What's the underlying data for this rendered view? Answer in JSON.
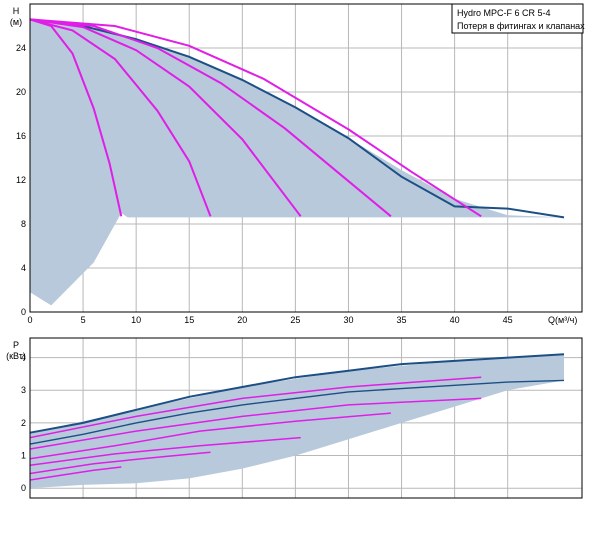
{
  "legend": {
    "lines": [
      "Hydro  MPC-F 6  CR 5-4",
      "Потеря в фитингах и клапанах"
    ]
  },
  "chart_data": [
    {
      "type": "line",
      "id": "head-curve",
      "ylabel_lines": [
        "H",
        "(м)"
      ],
      "xlabel": "Q(м³/ч)",
      "xlim": [
        0,
        52
      ],
      "ylim": [
        0,
        28
      ],
      "xticks": [
        0,
        5,
        10,
        15,
        20,
        25,
        30,
        35,
        40,
        45
      ],
      "yticks": [
        0,
        4,
        8,
        12,
        16,
        20,
        24
      ],
      "grid": true,
      "area_color": "#b7c9da",
      "envelope_color": "#1c4f85",
      "curve_color": "#e01ee8",
      "operating_area": [
        [
          0,
          26.6
        ],
        [
          5,
          26.0
        ],
        [
          10,
          24.8
        ],
        [
          15,
          23.2
        ],
        [
          20,
          21.1
        ],
        [
          25,
          18.6
        ],
        [
          30,
          15.8
        ],
        [
          35,
          12.9
        ],
        [
          40,
          10.3
        ],
        [
          45,
          8.8
        ],
        [
          50.3,
          8.6
        ],
        [
          9.2,
          8.6
        ],
        [
          8.6,
          9.0
        ],
        [
          6.0,
          4.5
        ],
        [
          2.0,
          0.6
        ],
        [
          0,
          1.8
        ]
      ],
      "envelope": [
        [
          0,
          26.6
        ],
        [
          5,
          26.0
        ],
        [
          10,
          24.8
        ],
        [
          15,
          23.2
        ],
        [
          20,
          21.1
        ],
        [
          25,
          18.6
        ],
        [
          30,
          15.8
        ],
        [
          35,
          12.3
        ],
        [
          40,
          9.6
        ],
        [
          45,
          9.4
        ],
        [
          50.3,
          8.6
        ]
      ],
      "series": [
        {
          "points": [
            [
              0,
              26.6
            ],
            [
              2,
              26.0
            ],
            [
              4,
              23.5
            ],
            [
              6,
              18.5
            ],
            [
              7.5,
              13.5
            ],
            [
              8.6,
              8.7
            ]
          ]
        },
        {
          "points": [
            [
              0,
              26.6
            ],
            [
              4,
              25.6
            ],
            [
              8,
              23.0
            ],
            [
              12,
              18.3
            ],
            [
              15,
              13.7
            ],
            [
              17,
              8.7
            ]
          ]
        },
        {
          "points": [
            [
              0,
              26.6
            ],
            [
              5,
              25.9
            ],
            [
              10,
              23.8
            ],
            [
              15,
              20.5
            ],
            [
              20,
              15.7
            ],
            [
              25.5,
              8.7
            ]
          ]
        },
        {
          "points": [
            [
              0,
              26.6
            ],
            [
              6,
              26.0
            ],
            [
              12,
              24.0
            ],
            [
              18,
              20.8
            ],
            [
              24,
              16.7
            ],
            [
              29,
              12.7
            ],
            [
              34,
              8.7
            ]
          ]
        },
        {
          "points": [
            [
              0,
              26.6
            ],
            [
              8,
              26.0
            ],
            [
              15,
              24.2
            ],
            [
              22,
              21.2
            ],
            [
              30,
              16.6
            ],
            [
              36,
              12.7
            ],
            [
              42.5,
              8.7
            ]
          ]
        }
      ]
    },
    {
      "type": "line",
      "id": "power-curve",
      "ylabel_lines": [
        "P",
        "(кВт)"
      ],
      "xlim": [
        0,
        52
      ],
      "ylim": [
        -0.3,
        4.6
      ],
      "yticks": [
        0,
        1,
        2,
        3,
        4
      ],
      "grid": true,
      "area_color": "#b7c9da",
      "envelope_color": "#1c4f85",
      "curve_color": "#e01ee8",
      "operating_area": [
        [
          0,
          1.7
        ],
        [
          10,
          2.4
        ],
        [
          20,
          3.1
        ],
        [
          30,
          3.6
        ],
        [
          40,
          3.9
        ],
        [
          50.3,
          4.1
        ],
        [
          50.3,
          3.3
        ],
        [
          45,
          3.0
        ],
        [
          40,
          2.5
        ],
        [
          35,
          2.0
        ],
        [
          30,
          1.5
        ],
        [
          25,
          1.0
        ],
        [
          20,
          0.6
        ],
        [
          15,
          0.3
        ],
        [
          10,
          0.15
        ],
        [
          5,
          0.1
        ],
        [
          0,
          0.0
        ]
      ],
      "envelope": [
        [
          0,
          1.7
        ],
        [
          5,
          2.0
        ],
        [
          10,
          2.4
        ],
        [
          15,
          2.8
        ],
        [
          20,
          3.1
        ],
        [
          25,
          3.4
        ],
        [
          30,
          3.6
        ],
        [
          35,
          3.8
        ],
        [
          40,
          3.9
        ],
        [
          45,
          4.0
        ],
        [
          50.3,
          4.1
        ]
      ],
      "envelope_lower": [
        [
          0,
          1.35
        ],
        [
          5,
          1.65
        ],
        [
          10,
          2.0
        ],
        [
          15,
          2.3
        ],
        [
          20,
          2.55
        ],
        [
          25,
          2.75
        ],
        [
          30,
          2.95
        ],
        [
          35,
          3.05
        ],
        [
          40,
          3.15
        ],
        [
          45,
          3.25
        ],
        [
          50.3,
          3.3
        ]
      ],
      "series": [
        {
          "points": [
            [
              0,
              1.55
            ],
            [
              10,
              2.2
            ],
            [
              20,
              2.75
            ],
            [
              30,
              3.1
            ],
            [
              42.5,
              3.4
            ]
          ]
        },
        {
          "points": [
            [
              0,
              1.2
            ],
            [
              10,
              1.75
            ],
            [
              20,
              2.2
            ],
            [
              30,
              2.55
            ],
            [
              42.5,
              2.75
            ]
          ]
        },
        {
          "points": [
            [
              0,
              0.9
            ],
            [
              8,
              1.3
            ],
            [
              16,
              1.75
            ],
            [
              25,
              2.05
            ],
            [
              34,
              2.3
            ]
          ]
        },
        {
          "points": [
            [
              0,
              0.7
            ],
            [
              8,
              1.05
            ],
            [
              16,
              1.3
            ],
            [
              25.5,
              1.55
            ]
          ]
        },
        {
          "points": [
            [
              0,
              0.45
            ],
            [
              6,
              0.75
            ],
            [
              12,
              0.95
            ],
            [
              17,
              1.1
            ]
          ]
        },
        {
          "points": [
            [
              0,
              0.25
            ],
            [
              3,
              0.4
            ],
            [
              6,
              0.55
            ],
            [
              8.6,
              0.65
            ]
          ]
        }
      ]
    }
  ]
}
